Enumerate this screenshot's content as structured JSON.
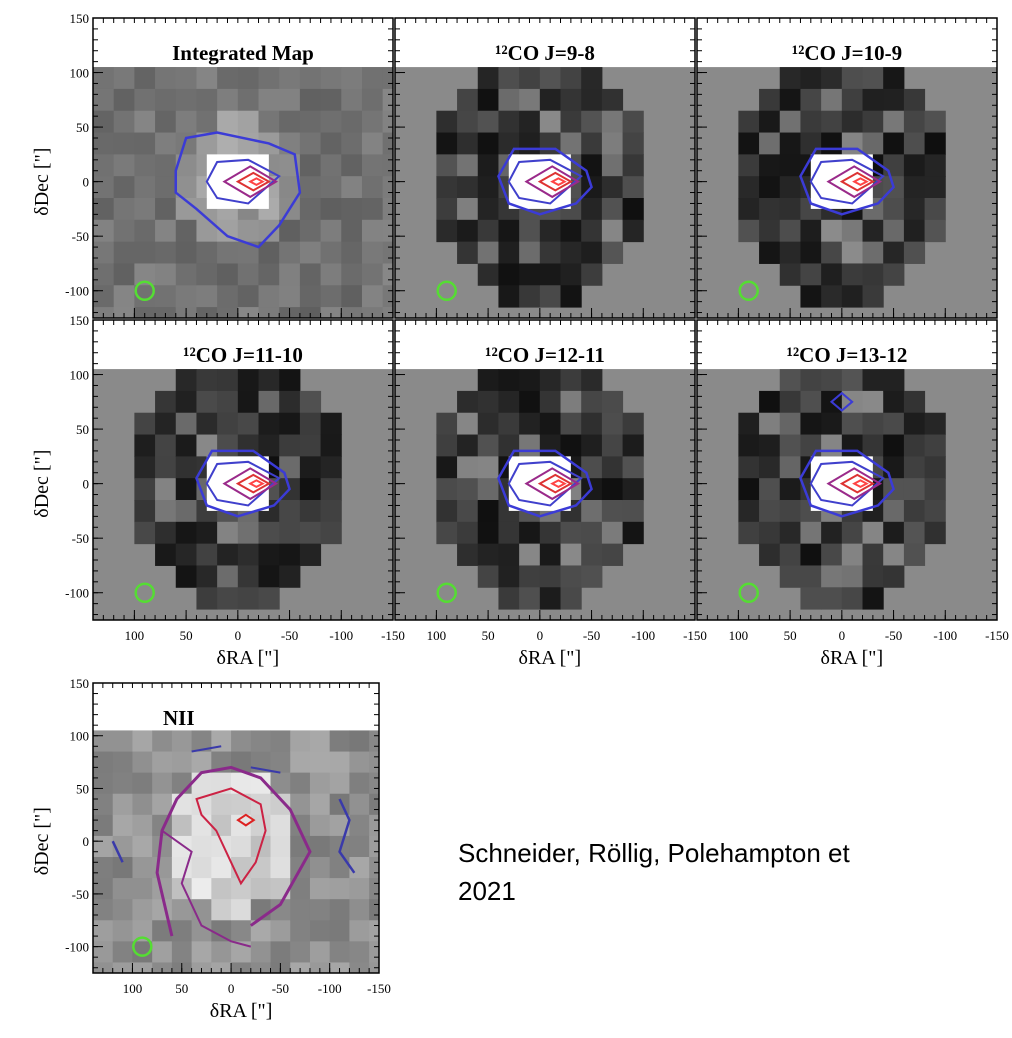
{
  "figure": {
    "xlim": [
      140,
      -150
    ],
    "ylim": [
      -125,
      150
    ],
    "xticks": [
      100,
      50,
      0,
      -50,
      -100,
      -150
    ],
    "yticks": [
      150,
      100,
      50,
      0,
      -50,
      -100
    ],
    "x_label": "δRA [\"]",
    "y_label": "δDec [\"]",
    "panels": [
      {
        "title": "Integrated Map"
      },
      {
        "title": "¹²CO J=9-8"
      },
      {
        "title": "¹²CO J=10-9"
      },
      {
        "title": "¹²CO J=11-10"
      },
      {
        "title": "¹²CO J=12-11"
      },
      {
        "title": "¹²CO J=13-12"
      },
      {
        "title": "NII"
      }
    ]
  },
  "caption": [
    "Schneider, Röllig, Polehampton et",
    "2021"
  ]
}
